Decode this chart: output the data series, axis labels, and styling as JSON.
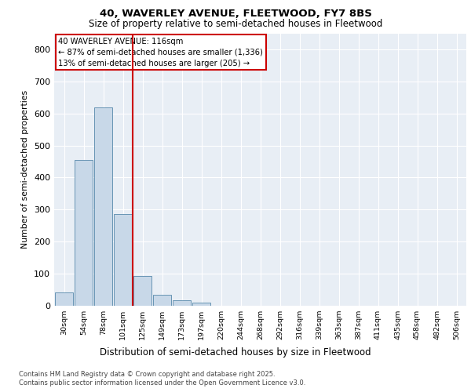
{
  "title1": "40, WAVERLEY AVENUE, FLEETWOOD, FY7 8BS",
  "title2": "Size of property relative to semi-detached houses in Fleetwood",
  "xlabel": "Distribution of semi-detached houses by size in Fleetwood",
  "ylabel": "Number of semi-detached properties",
  "bins": [
    "30sqm",
    "54sqm",
    "78sqm",
    "101sqm",
    "125sqm",
    "149sqm",
    "173sqm",
    "197sqm",
    "220sqm",
    "244sqm",
    "268sqm",
    "292sqm",
    "316sqm",
    "339sqm",
    "363sqm",
    "387sqm",
    "411sqm",
    "435sqm",
    "458sqm",
    "482sqm",
    "506sqm"
  ],
  "values": [
    42,
    455,
    618,
    285,
    92,
    35,
    18,
    9,
    0,
    0,
    0,
    0,
    0,
    0,
    0,
    0,
    0,
    0,
    0,
    0,
    0
  ],
  "bar_color": "#c8d8e8",
  "bar_edge_color": "#5588aa",
  "red_line_color": "#cc0000",
  "annotation_title": "40 WAVERLEY AVENUE: 116sqm",
  "annotation_line1": "← 87% of semi-detached houses are smaller (1,336)",
  "annotation_line2": "13% of semi-detached houses are larger (205) →",
  "ylim": [
    0,
    850
  ],
  "yticks": [
    0,
    100,
    200,
    300,
    400,
    500,
    600,
    700,
    800
  ],
  "footnote1": "Contains HM Land Registry data © Crown copyright and database right 2025.",
  "footnote2": "Contains public sector information licensed under the Open Government Licence v3.0.",
  "background_color": "#e8eef5",
  "red_line_x": 3.5
}
